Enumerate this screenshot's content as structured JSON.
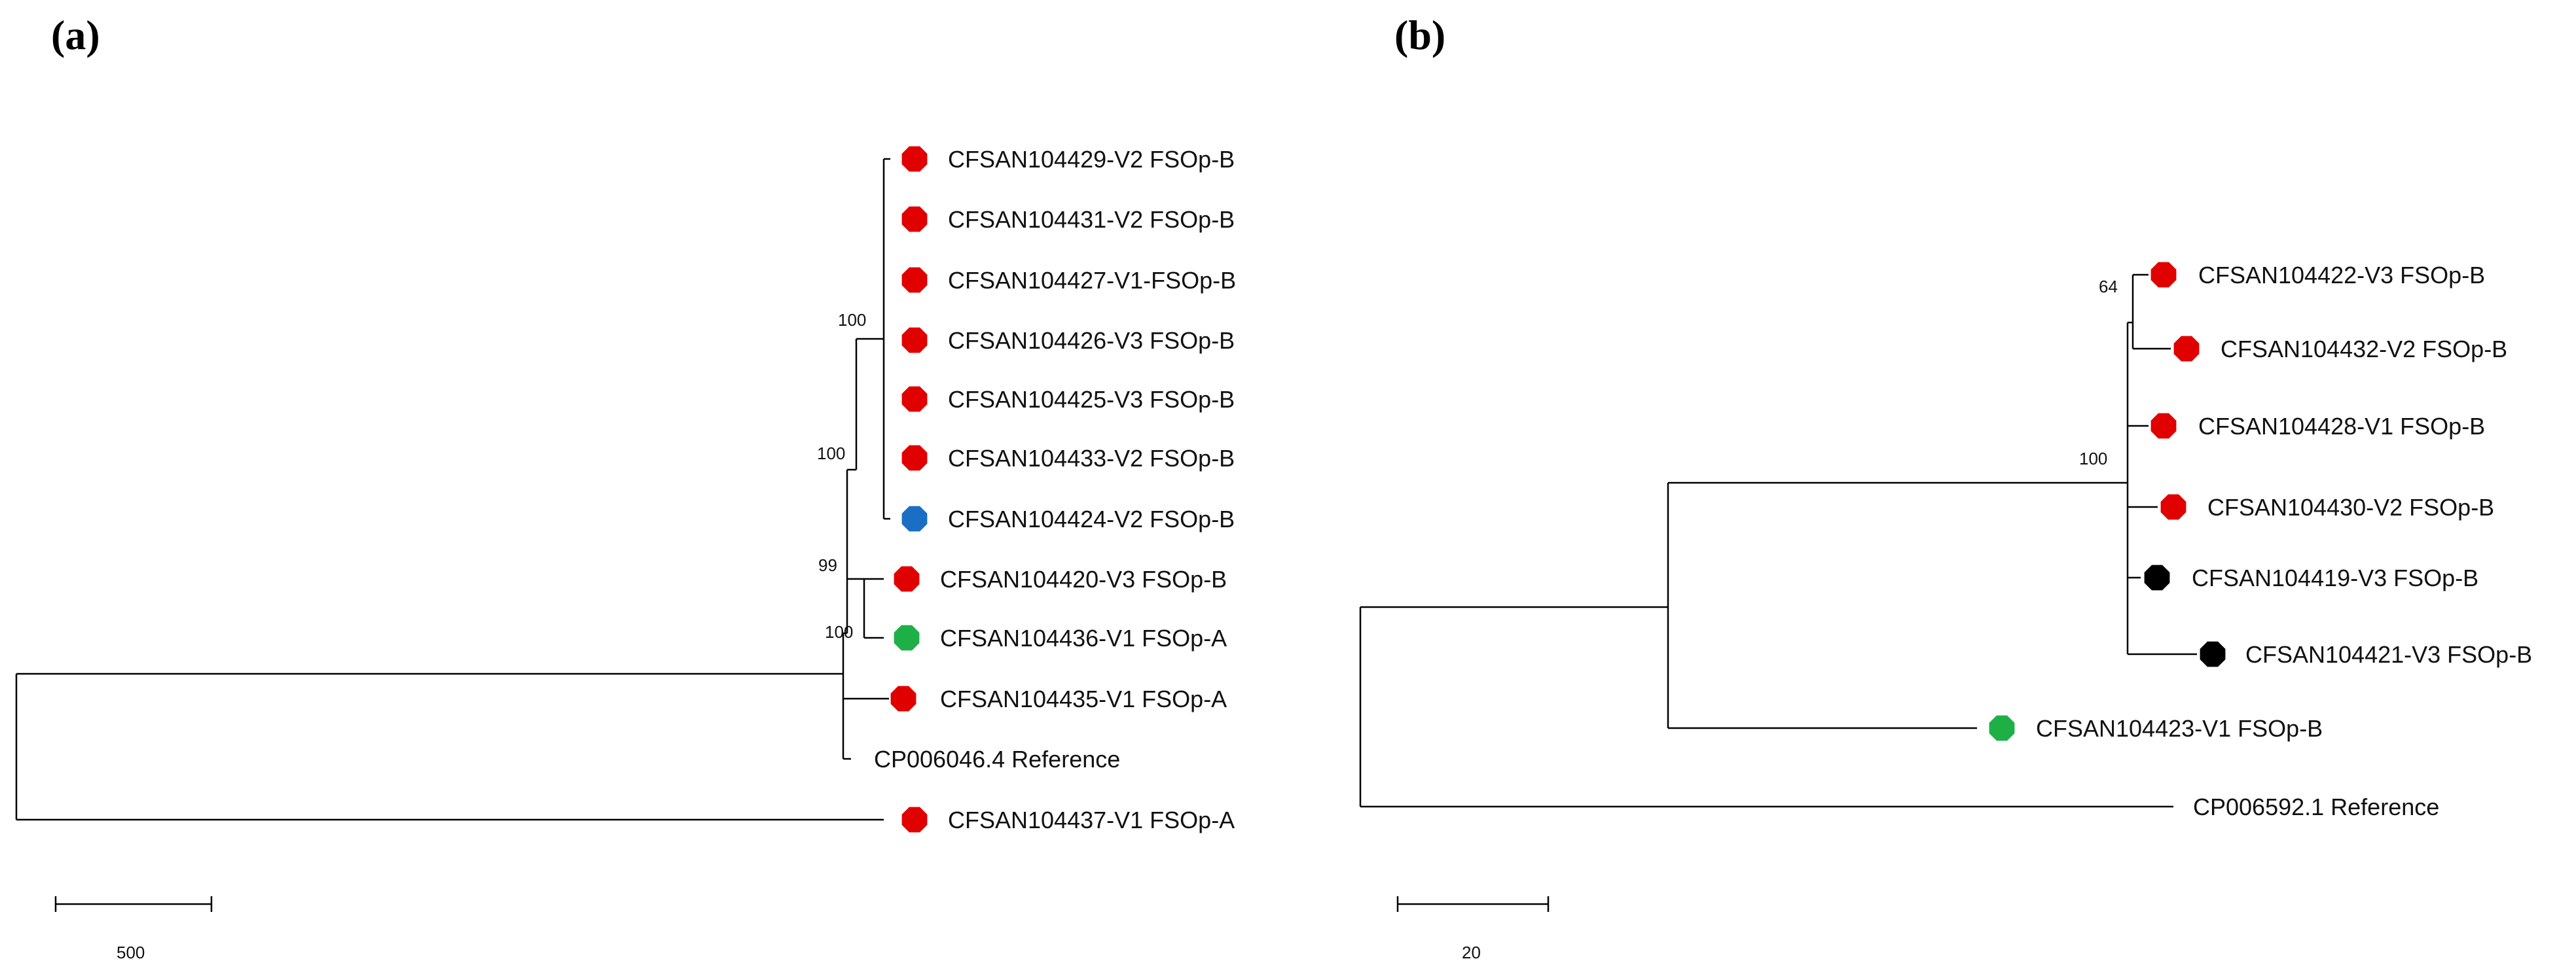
{
  "panels": [
    {
      "label": "(a)",
      "scale_bar_label": "500",
      "bootstrap_values": [
        "100",
        "100",
        "99",
        "100"
      ],
      "leaves": [
        {
          "name": "CFSAN104429-V2 FSOp-B",
          "marker_color": "#e00000"
        },
        {
          "name": "CFSAN104431-V2 FSOp-B",
          "marker_color": "#e00000"
        },
        {
          "name": "CFSAN104427-V1-FSOp-B",
          "marker_color": "#e00000"
        },
        {
          "name": "CFSAN104426-V3 FSOp-B",
          "marker_color": "#e00000"
        },
        {
          "name": "CFSAN104425-V3 FSOp-B",
          "marker_color": "#e00000"
        },
        {
          "name": "CFSAN104433-V2 FSOp-B",
          "marker_color": "#e00000"
        },
        {
          "name": "CFSAN104424-V2 FSOp-B",
          "marker_color": "#1a6fc4"
        },
        {
          "name": "CFSAN104420-V3 FSOp-B",
          "marker_color": "#e00000"
        },
        {
          "name": "CFSAN104436-V1 FSOp-A",
          "marker_color": "#1eb046"
        },
        {
          "name": "CFSAN104435-V1 FSOp-A",
          "marker_color": "#e00000"
        },
        {
          "name": "CP006046.4 Reference",
          "marker_color": null
        },
        {
          "name": "CFSAN104437-V1 FSOp-A",
          "marker_color": "#e00000"
        }
      ]
    },
    {
      "label": "(b)",
      "scale_bar_label": "20",
      "bootstrap_values": [
        "64",
        "100"
      ],
      "leaves": [
        {
          "name": "CFSAN104422-V3 FSOp-B",
          "marker_color": "#e00000"
        },
        {
          "name": "CFSAN104432-V2 FSOp-B",
          "marker_color": "#e00000"
        },
        {
          "name": "CFSAN104428-V1 FSOp-B",
          "marker_color": "#e00000"
        },
        {
          "name": "CFSAN104430-V2 FSOp-B",
          "marker_color": "#e00000"
        },
        {
          "name": "CFSAN104419-V3 FSOp-B",
          "marker_color": "#000000"
        },
        {
          "name": "CFSAN104421-V3 FSOp-B",
          "marker_color": "#000000"
        },
        {
          "name": "CFSAN104423-V1 FSOp-B",
          "marker_color": "#1eb046"
        },
        {
          "name": "CP006592.1 Reference",
          "marker_color": null
        }
      ]
    }
  ]
}
